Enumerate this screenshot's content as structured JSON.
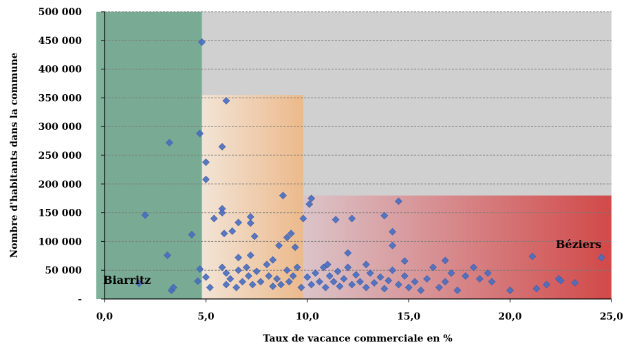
{
  "chart_data": {
    "type": "scatter",
    "title": "",
    "xlabel": "Taux de vacance commerciale  en %",
    "ylabel": "Nombre d'habitants dans la commune",
    "xlim": [
      0,
      25
    ],
    "ylim": [
      0,
      500000
    ],
    "x_ticks": [
      0,
      5,
      10,
      15,
      20,
      25
    ],
    "x_tick_labels": [
      "0,0",
      "5,0",
      "10,0",
      "15,0",
      "20,0",
      "25,0"
    ],
    "y_ticks": [
      0,
      50000,
      100000,
      150000,
      200000,
      250000,
      300000,
      350000,
      400000,
      450000,
      500000
    ],
    "y_tick_labels": [
      "-",
      "50 000",
      "100 000",
      "150 000",
      "200 000",
      "250 000",
      "300 000",
      "350 000",
      "400 000",
      "450 000",
      "500 000"
    ],
    "grid": "horizontal dashed",
    "legend": "none",
    "colors": {
      "marker": "#4a6fc0",
      "background": "#d0d0d0",
      "zone_low": "#6aa38a",
      "zone_mid": "#f0c9a8",
      "zone_high": "#d84848"
    },
    "zones": [
      {
        "name": "low",
        "x": [
          0,
          4.8
        ],
        "y": [
          0,
          500000
        ]
      },
      {
        "name": "mid",
        "x": [
          4.8,
          9.8
        ],
        "y": [
          0,
          355000
        ]
      },
      {
        "name": "high",
        "x": [
          9.8,
          25
        ],
        "y": [
          0,
          180000
        ]
      }
    ],
    "annotations": [
      {
        "text": "Biarritz",
        "x": 1.7,
        "y": 27000
      },
      {
        "text": "Béziers",
        "x": 24.5,
        "y": 72000
      }
    ],
    "points": [
      [
        4.8,
        447000
      ],
      [
        6.0,
        345000
      ],
      [
        4.7,
        288000
      ],
      [
        3.2,
        272000
      ],
      [
        5.8,
        265000
      ],
      [
        5.0,
        238000
      ],
      [
        5.0,
        208000
      ],
      [
        8.8,
        180000
      ],
      [
        10.2,
        175000
      ],
      [
        14.5,
        170000
      ],
      [
        10.1,
        165000
      ],
      [
        5.8,
        157000
      ],
      [
        5.8,
        150000
      ],
      [
        2.0,
        146000
      ],
      [
        7.2,
        143000
      ],
      [
        9.8,
        140000
      ],
      [
        5.4,
        140000
      ],
      [
        11.4,
        138000
      ],
      [
        12.2,
        140000
      ],
      [
        13.8,
        145000
      ],
      [
        7.2,
        132000
      ],
      [
        6.6,
        133000
      ],
      [
        5.9,
        114000
      ],
      [
        6.3,
        118000
      ],
      [
        4.3,
        112000
      ],
      [
        9.2,
        114000
      ],
      [
        9.0,
        107000
      ],
      [
        7.4,
        109000
      ],
      [
        14.2,
        117000
      ],
      [
        14.2,
        93000
      ],
      [
        8.6,
        93000
      ],
      [
        9.4,
        90000
      ],
      [
        12.0,
        80000
      ],
      [
        3.1,
        76000
      ],
      [
        6.6,
        72000
      ],
      [
        7.2,
        76000
      ],
      [
        8.3,
        68000
      ],
      [
        12.9,
        60000
      ],
      [
        14.8,
        66000
      ],
      [
        16.8,
        67000
      ],
      [
        21.1,
        74000
      ],
      [
        24.5,
        72000
      ],
      [
        1.7,
        27000
      ],
      [
        3.3,
        15000
      ],
      [
        3.4,
        20000
      ],
      [
        4.6,
        31000
      ],
      [
        4.7,
        52000
      ],
      [
        5.0,
        38000
      ],
      [
        5.2,
        20000
      ],
      [
        5.8,
        55000
      ],
      [
        6.0,
        45000
      ],
      [
        6.0,
        25000
      ],
      [
        6.2,
        35000
      ],
      [
        6.5,
        20000
      ],
      [
        6.6,
        50000
      ],
      [
        6.8,
        30000
      ],
      [
        7.0,
        55000
      ],
      [
        7.1,
        40000
      ],
      [
        7.3,
        25000
      ],
      [
        7.5,
        48000
      ],
      [
        7.7,
        30000
      ],
      [
        8.0,
        60000
      ],
      [
        8.1,
        40000
      ],
      [
        8.3,
        22000
      ],
      [
        8.5,
        35000
      ],
      [
        8.7,
        25000
      ],
      [
        9.0,
        50000
      ],
      [
        9.1,
        30000
      ],
      [
        9.3,
        40000
      ],
      [
        9.5,
        55000
      ],
      [
        9.7,
        20000
      ],
      [
        10.0,
        38000
      ],
      [
        10.2,
        25000
      ],
      [
        10.4,
        45000
      ],
      [
        10.6,
        30000
      ],
      [
        10.8,
        55000
      ],
      [
        10.9,
        20000
      ],
      [
        11.0,
        60000
      ],
      [
        11.1,
        40000
      ],
      [
        11.3,
        30000
      ],
      [
        11.5,
        48000
      ],
      [
        11.6,
        22000
      ],
      [
        11.8,
        35000
      ],
      [
        12.0,
        55000
      ],
      [
        12.2,
        25000
      ],
      [
        12.4,
        42000
      ],
      [
        12.6,
        30000
      ],
      [
        12.9,
        20000
      ],
      [
        13.1,
        45000
      ],
      [
        13.3,
        28000
      ],
      [
        13.6,
        38000
      ],
      [
        13.8,
        18000
      ],
      [
        14.0,
        32000
      ],
      [
        14.2,
        50000
      ],
      [
        14.5,
        25000
      ],
      [
        14.8,
        40000
      ],
      [
        15.0,
        20000
      ],
      [
        15.3,
        30000
      ],
      [
        15.6,
        15000
      ],
      [
        15.9,
        35000
      ],
      [
        16.2,
        55000
      ],
      [
        16.5,
        20000
      ],
      [
        16.8,
        30000
      ],
      [
        17.1,
        45000
      ],
      [
        17.4,
        15000
      ],
      [
        17.8,
        40000
      ],
      [
        18.2,
        55000
      ],
      [
        18.5,
        35000
      ],
      [
        18.9,
        45000
      ],
      [
        19.1,
        30000
      ],
      [
        20.0,
        15000
      ],
      [
        21.3,
        18000
      ],
      [
        21.8,
        25000
      ],
      [
        22.4,
        35000
      ],
      [
        22.5,
        32000
      ],
      [
        23.2,
        28000
      ]
    ]
  }
}
